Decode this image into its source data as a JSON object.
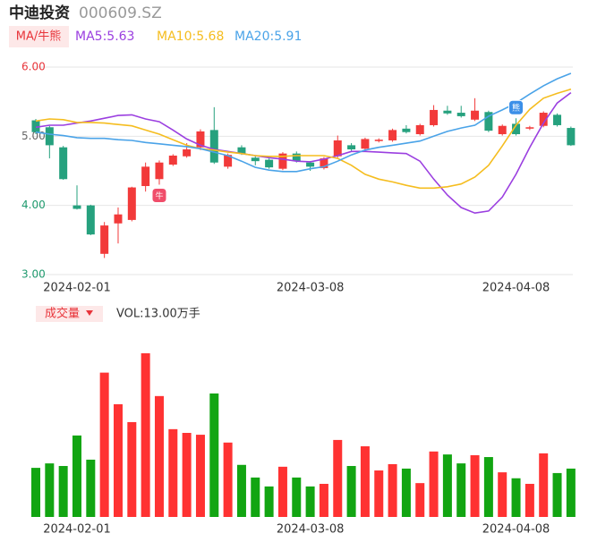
{
  "header": {
    "name": "中迪投资",
    "code": "000609.SZ"
  },
  "chart_data": [
    {
      "type": "candlestick",
      "legend_tag": "MA/牛熊",
      "categories": [
        null,
        null,
        null,
        "2024-02-01",
        null,
        null,
        null,
        null,
        null,
        null,
        null,
        null,
        null,
        null,
        null,
        null,
        null,
        null,
        null,
        null,
        "2024-03-08",
        null,
        null,
        null,
        null,
        null,
        null,
        null,
        null,
        null,
        null,
        null,
        null,
        null,
        null,
        "2024-04-08",
        null,
        null,
        null,
        null
      ],
      "open": [
        5.23,
        5.13,
        4.84,
        4.0,
        4.0,
        3.3,
        3.74,
        3.79,
        4.28,
        4.38,
        4.59,
        4.71,
        4.84,
        5.09,
        4.56,
        4.84,
        4.69,
        4.66,
        4.53,
        4.75,
        4.62,
        4.54,
        4.71,
        4.87,
        4.82,
        4.93,
        4.94,
        5.11,
        5.03,
        5.16,
        5.37,
        5.34,
        5.24,
        5.35,
        5.03,
        5.18,
        5.11,
        5.15,
        5.31,
        5.12
      ],
      "high": [
        5.25,
        5.15,
        4.86,
        4.29,
        4.01,
        3.76,
        3.97,
        4.27,
        4.62,
        4.65,
        4.74,
        4.9,
        5.1,
        5.42,
        4.75,
        4.87,
        4.71,
        4.68,
        4.77,
        4.78,
        4.64,
        4.7,
        5.01,
        4.9,
        4.98,
        4.97,
        5.11,
        5.16,
        5.18,
        5.45,
        5.44,
        5.44,
        5.55,
        5.37,
        5.17,
        5.26,
        5.15,
        5.36,
        5.33,
        5.14
      ],
      "low": [
        5.03,
        4.68,
        4.37,
        3.94,
        3.57,
        3.24,
        3.45,
        3.77,
        4.2,
        4.3,
        4.57,
        4.69,
        4.8,
        4.6,
        4.53,
        4.73,
        4.58,
        4.53,
        4.51,
        4.62,
        4.5,
        4.52,
        4.69,
        4.79,
        4.8,
        4.91,
        4.92,
        5.04,
        5.01,
        5.14,
        5.31,
        5.27,
        5.22,
        5.06,
        5.01,
        5.01,
        5.09,
        5.13,
        5.14,
        4.86
      ],
      "close": [
        5.06,
        4.87,
        4.38,
        3.95,
        3.58,
        3.71,
        3.87,
        4.26,
        4.56,
        4.62,
        4.72,
        4.81,
        5.07,
        4.62,
        4.73,
        4.75,
        4.64,
        4.55,
        4.75,
        4.64,
        4.56,
        4.68,
        4.94,
        4.81,
        4.96,
        4.95,
        5.09,
        5.06,
        5.16,
        5.38,
        5.33,
        5.29,
        5.37,
        5.08,
        5.15,
        5.03,
        5.13,
        5.34,
        5.16,
        4.87
      ],
      "up_color": "#f23a3a",
      "down_color": "#26a17e",
      "ylim": [
        3,
        6
      ],
      "yticks": [
        {
          "value": 6,
          "label": "6.00"
        },
        {
          "value": 5,
          "label": "5.00"
        },
        {
          "value": 4,
          "label": "4.00"
        },
        {
          "value": 3,
          "label": "3.00"
        }
      ],
      "ytick_colors": [
        "#e8343a",
        "#666666",
        "#1f9a6e",
        "#1f9a6e"
      ],
      "grid": true,
      "series": [
        {
          "name": "MA5:5.63",
          "color": "#9b3fe0",
          "values": [
            5.13,
            5.16,
            5.16,
            5.19,
            5.22,
            5.26,
            5.3,
            5.31,
            5.25,
            5.21,
            5.09,
            4.96,
            4.87,
            4.81,
            4.78,
            4.75,
            4.72,
            4.69,
            4.67,
            4.64,
            4.63,
            4.67,
            4.72,
            4.78,
            4.78,
            4.77,
            4.76,
            4.75,
            4.64,
            4.38,
            4.15,
            3.97,
            3.89,
            3.92,
            4.12,
            4.45,
            4.84,
            5.19,
            5.48,
            5.63
          ]
        },
        {
          "name": "MA10:5.68",
          "color": "#f5bd1f",
          "values": [
            5.22,
            5.25,
            5.24,
            5.2,
            5.2,
            5.19,
            5.17,
            5.15,
            5.09,
            5.03,
            4.95,
            4.87,
            4.82,
            4.8,
            4.77,
            4.75,
            4.72,
            4.71,
            4.71,
            4.72,
            4.72,
            4.72,
            4.68,
            4.58,
            4.45,
            4.38,
            4.34,
            4.29,
            4.25,
            4.25,
            4.27,
            4.31,
            4.41,
            4.58,
            4.86,
            5.16,
            5.39,
            5.55,
            5.62,
            5.68
          ]
        },
        {
          "name": "MA20:5.91",
          "color": "#4aa3e8",
          "values": [
            5.06,
            5.03,
            5.01,
            4.98,
            4.97,
            4.97,
            4.95,
            4.94,
            4.91,
            4.89,
            4.87,
            4.85,
            4.82,
            4.77,
            4.72,
            4.64,
            4.55,
            4.51,
            4.49,
            4.49,
            4.53,
            4.56,
            4.64,
            4.73,
            4.8,
            4.84,
            4.87,
            4.9,
            4.93,
            5.0,
            5.07,
            5.12,
            5.16,
            5.29,
            5.38,
            5.48,
            5.61,
            5.73,
            5.83,
            5.91
          ]
        }
      ],
      "annotations": [
        {
          "index": 9,
          "text": "牛",
          "color": "#f04d6a"
        },
        {
          "index": 35,
          "text": "熊",
          "color": "#3b8fe8"
        }
      ]
    },
    {
      "type": "bar",
      "title": "成交量",
      "label": "VOL:13.00万手",
      "categories": [
        null,
        null,
        null,
        "2024-02-01",
        null,
        null,
        null,
        null,
        null,
        null,
        null,
        null,
        null,
        null,
        null,
        null,
        null,
        null,
        null,
        null,
        "2024-03-08",
        null,
        null,
        null,
        null,
        null,
        null,
        null,
        null,
        null,
        null,
        null,
        null,
        null,
        null,
        "2024-04-08",
        null,
        null,
        null,
        null
      ],
      "values": [
        13.2,
        14.4,
        13.7,
        21.9,
        15.4,
        38.8,
        30.3,
        25.5,
        44.0,
        32.5,
        23.6,
        22.6,
        22.1,
        33.2,
        20.0,
        14.0,
        10.6,
        8.2,
        13.5,
        10.6,
        8.2,
        8.9,
        20.7,
        13.7,
        19.0,
        12.5,
        14.2,
        13.0,
        9.1,
        17.6,
        16.8,
        14.4,
        16.6,
        16.1,
        12.0,
        10.4,
        8.9,
        17.1,
        11.8,
        13.0
      ],
      "up_color": "#ff3232",
      "down_color": "#12a512"
    }
  ]
}
